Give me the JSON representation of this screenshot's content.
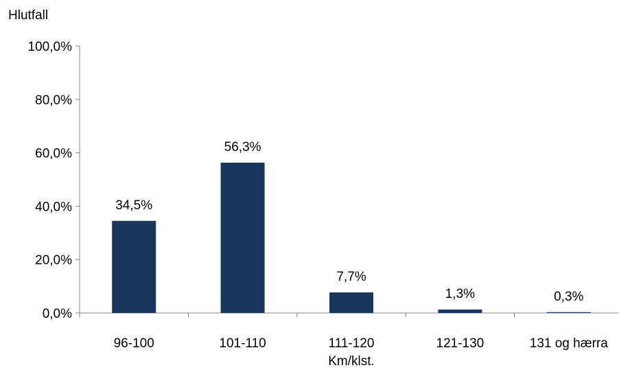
{
  "chart_data": {
    "type": "bar",
    "title": "",
    "ylabel": "Hlutfall",
    "xlabel": "Km/klst.",
    "categories": [
      "96-100",
      "101-110",
      "111-120",
      "121-130",
      "131 og hærra"
    ],
    "values": [
      34.5,
      56.3,
      7.7,
      1.3,
      0.3
    ],
    "data_labels": [
      "34,5%",
      "56,3%",
      "7,7%",
      "1,3%",
      "0,3%"
    ],
    "ylim": [
      0,
      100
    ],
    "yticks": [
      0,
      20,
      40,
      60,
      80,
      100
    ],
    "ytick_labels": [
      "0,0%",
      "20,0%",
      "40,0%",
      "60,0%",
      "80,0%",
      "100,0%"
    ],
    "grid": false,
    "legend": "none",
    "bar_color": "#1b365d",
    "axis_color": "#808080"
  }
}
